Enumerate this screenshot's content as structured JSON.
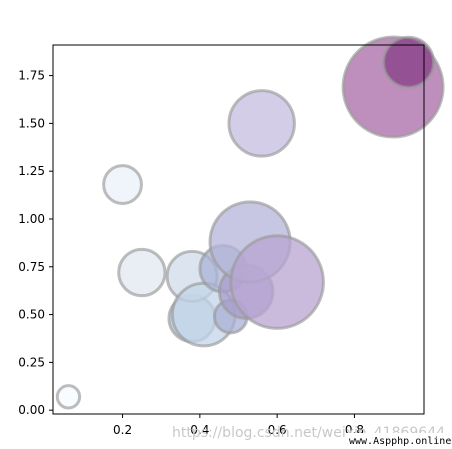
{
  "chart_data": {
    "type": "scatter",
    "title": "",
    "xlabel": "",
    "ylabel": "",
    "xlim": [
      0.02,
      0.98
    ],
    "ylim": [
      -0.02,
      1.91
    ],
    "grid": false,
    "x_ticks": [
      {
        "value": 0.2,
        "label": "0.2"
      },
      {
        "value": 0.4,
        "label": "0.4"
      },
      {
        "value": 0.6,
        "label": "0.6"
      },
      {
        "value": 0.8,
        "label": "0.8"
      }
    ],
    "y_ticks": [
      {
        "value": 0.0,
        "label": "0.00"
      },
      {
        "value": 0.25,
        "label": "0.25"
      },
      {
        "value": 0.5,
        "label": "0.50"
      },
      {
        "value": 0.75,
        "label": "0.75"
      },
      {
        "value": 1.0,
        "label": "1.00"
      },
      {
        "value": 1.25,
        "label": "1.25"
      },
      {
        "value": 1.5,
        "label": "1.50"
      },
      {
        "value": 1.75,
        "label": "1.75"
      }
    ],
    "points": [
      {
        "x": 0.06,
        "y": 0.07,
        "size": 0.07,
        "color": "#f7fbff"
      },
      {
        "x": 0.2,
        "y": 1.18,
        "size": 0.2,
        "color": "#eaf1f8"
      },
      {
        "x": 0.25,
        "y": 0.72,
        "size": 0.3,
        "color": "#e2e8f0"
      },
      {
        "x": 0.38,
        "y": 0.48,
        "size": 0.3,
        "color": "#b8cde0"
      },
      {
        "x": 0.38,
        "y": 0.7,
        "size": 0.35,
        "color": "#d0dcea"
      },
      {
        "x": 0.41,
        "y": 0.5,
        "size": 0.55,
        "color": "#c2d4e8"
      },
      {
        "x": 0.46,
        "y": 0.74,
        "size": 0.3,
        "color": "#aab3d6"
      },
      {
        "x": 0.48,
        "y": 0.49,
        "size": 0.15,
        "color": "#a8b0d4"
      },
      {
        "x": 0.52,
        "y": 0.62,
        "size": 0.4,
        "color": "#a89ccc"
      },
      {
        "x": 0.53,
        "y": 0.88,
        "size": 0.9,
        "color": "#b4b4da"
      },
      {
        "x": 0.56,
        "y": 1.5,
        "size": 0.6,
        "color": "#c4bce0"
      },
      {
        "x": 0.6,
        "y": 0.67,
        "size": 1.2,
        "color": "#b8a4d2"
      },
      {
        "x": 0.9,
        "y": 1.69,
        "size": 1.4,
        "color": "#a86aa6"
      },
      {
        "x": 0.94,
        "y": 1.82,
        "size": 0.35,
        "color": "#853d87"
      }
    ]
  },
  "watermark": {
    "text": "https://blog.csdn.net/weixin_41869644",
    "site": "www.Aspphp.online"
  }
}
